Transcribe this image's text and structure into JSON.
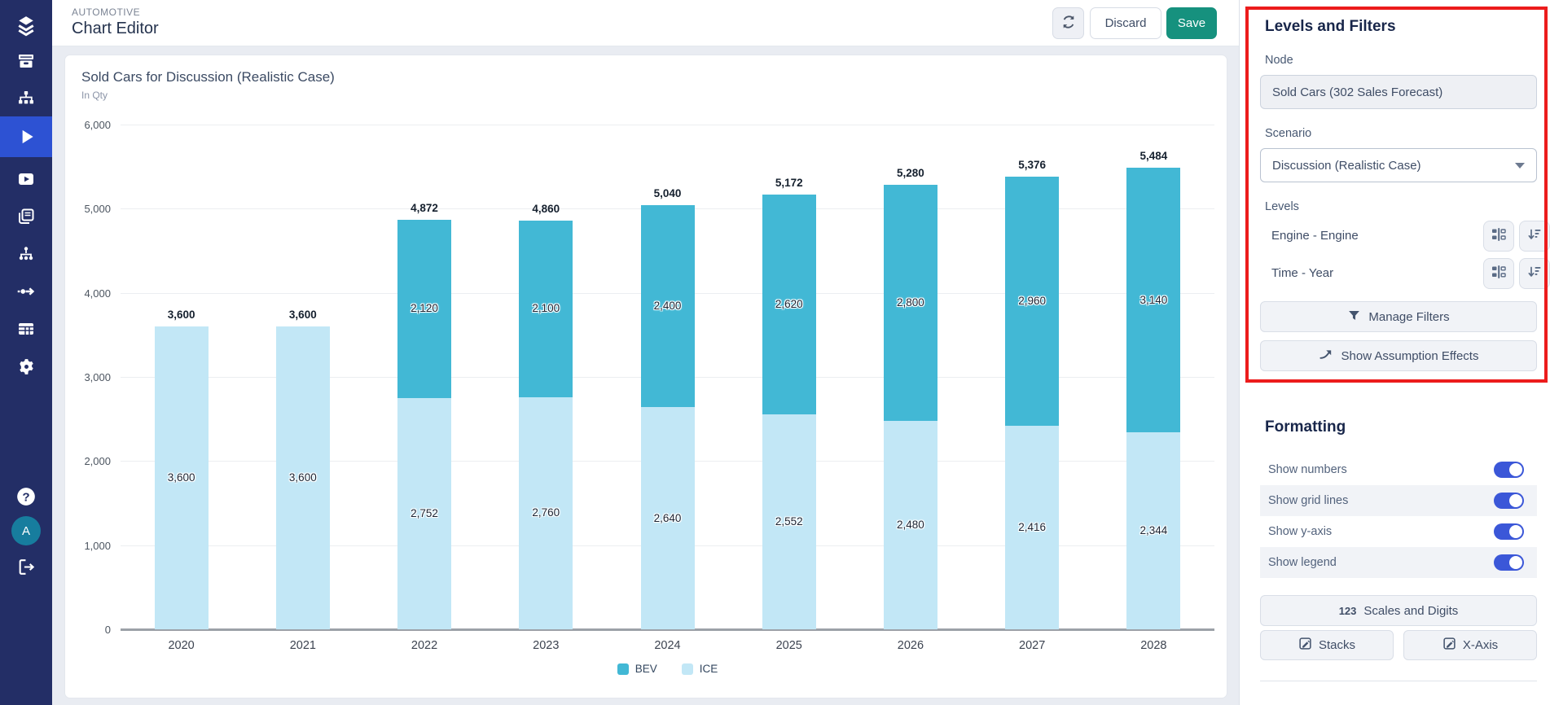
{
  "app": {
    "breadcrumb": "AUTOMOTIVE",
    "title": "Chart Editor",
    "discard_label": "Discard",
    "save_label": "Save"
  },
  "sidebar": {
    "icons": [
      "layers-logo",
      "archive",
      "hierarchy",
      "play",
      "video-play",
      "copy-pages",
      "network-nodes",
      "flow-arrow",
      "table",
      "gear",
      "help",
      "avatar",
      "logout"
    ],
    "active_icon": "play",
    "avatar_initial": "A"
  },
  "chart": {
    "title": "Sold Cars for Discussion (Realistic Case)",
    "subtitle": "In Qty"
  },
  "chart_data": {
    "type": "bar",
    "stacked": true,
    "title": "Sold Cars for Discussion (Realistic Case)",
    "ylabel": "In Qty",
    "categories": [
      "2020",
      "2021",
      "2022",
      "2023",
      "2024",
      "2025",
      "2026",
      "2027",
      "2028"
    ],
    "series": [
      {
        "name": "BEV",
        "color": "#42b8d5",
        "values": [
          0,
          0,
          2120,
          2100,
          2400,
          2620,
          2800,
          2960,
          3140
        ]
      },
      {
        "name": "ICE",
        "color": "#c2e7f6",
        "values": [
          3600,
          3600,
          2752,
          2760,
          2640,
          2552,
          2480,
          2416,
          2344
        ]
      }
    ],
    "totals": [
      3600,
      3600,
      4872,
      4860,
      5040,
      5172,
      5280,
      5376,
      5484
    ],
    "ylim": [
      0,
      6000
    ],
    "ytick_step": 1000,
    "grid": true,
    "legend_position": "bottom"
  },
  "panel": {
    "heading": "Levels and Filters",
    "node": {
      "label": "Node",
      "value": "Sold Cars (302 Sales Forecast)"
    },
    "scenario": {
      "label": "Scenario",
      "value": "Discussion (Realistic Case)"
    },
    "levels": {
      "label": "Levels",
      "items": [
        {
          "label": "Engine - Engine"
        },
        {
          "label": "Time - Year"
        }
      ]
    },
    "manage_filters_label": "Manage Filters",
    "show_assumption_label": "Show Assumption Effects"
  },
  "formatting": {
    "heading": "Formatting",
    "toggles": [
      {
        "label": "Show numbers",
        "on": true
      },
      {
        "label": "Show grid lines",
        "on": true
      },
      {
        "label": "Show y-axis",
        "on": true
      },
      {
        "label": "Show legend",
        "on": true
      }
    ],
    "scales_prefix": "123",
    "scales_label": "Scales and Digits",
    "stacks_label": "Stacks",
    "xaxis_label": "X-Axis"
  },
  "colors": {
    "accent_save": "#16917e",
    "toggle_on": "#3b57d8",
    "sidebar_bg": "#232e66",
    "sidebar_active": "#2d52d3",
    "highlight_red": "#ec1c1c",
    "bev": "#42b8d5",
    "ice": "#c2e7f6"
  }
}
